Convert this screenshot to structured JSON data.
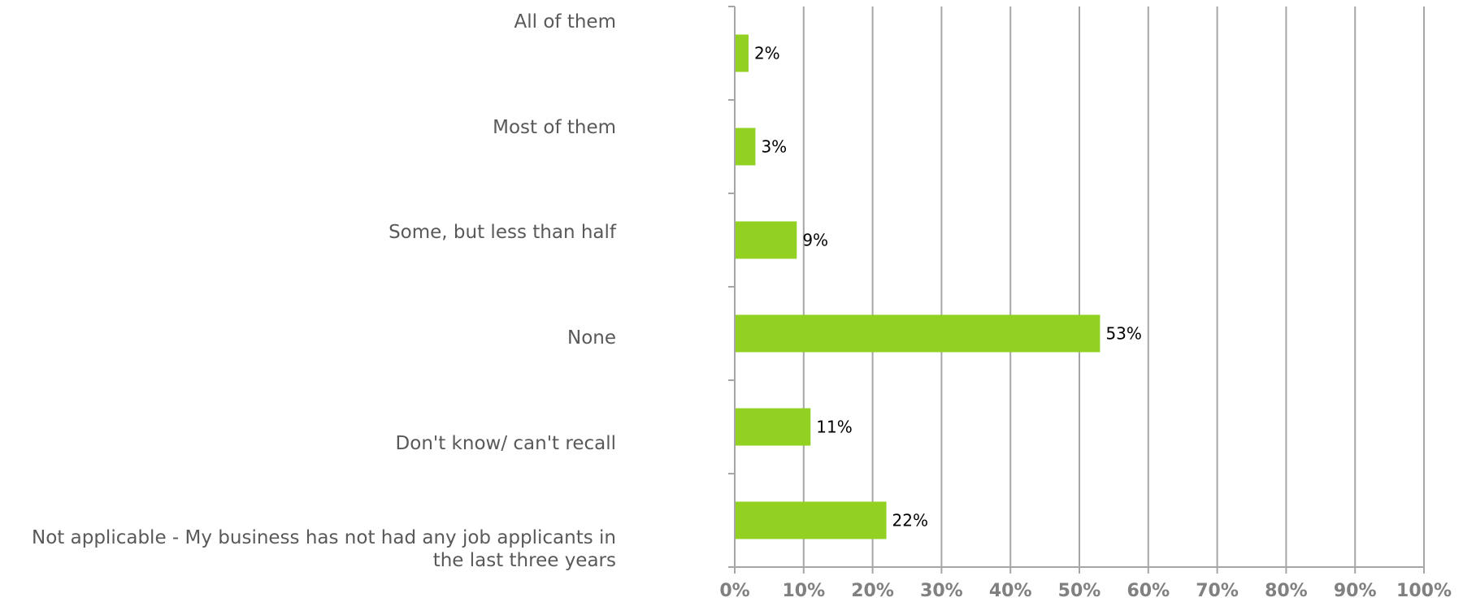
{
  "chart_data": {
    "type": "bar",
    "orientation": "horizontal",
    "categories": [
      "All of them",
      "Most of them",
      "Some, but less than half",
      "None",
      "Don't know/ can't recall",
      "Not applicable - My business has not had any job applicants in the last three years"
    ],
    "values": [
      2,
      3,
      9,
      53,
      11,
      22
    ],
    "value_labels": [
      "2%",
      "3%",
      "9%",
      "53%",
      "11%",
      "22%"
    ],
    "xlim": [
      0,
      100
    ],
    "x_ticks": [
      "0%",
      "10%",
      "20%",
      "30%",
      "40%",
      "50%",
      "60%",
      "70%",
      "80%",
      "90%",
      "100%"
    ],
    "grid": "vertical",
    "bar_color": "#92D122",
    "grid_color": "#A6A6A6",
    "title": "",
    "xlabel": "",
    "ylabel": ""
  }
}
